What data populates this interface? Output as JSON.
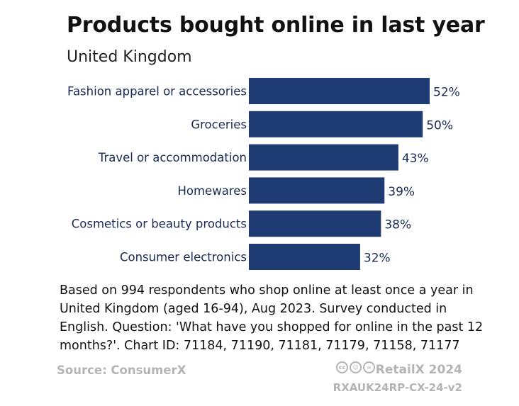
{
  "title": "Products bought online in last year",
  "subtitle": "United Kingdom",
  "chart_data": {
    "type": "bar",
    "orientation": "horizontal",
    "title": "Products bought online in last year",
    "subtitle": "United Kingdom",
    "categories": [
      "Fashion apparel or accessories",
      "Groceries",
      "Travel or accommodation",
      "Homewares",
      "Cosmetics or beauty products",
      "Consumer electronics"
    ],
    "values": [
      52,
      50,
      43,
      39,
      38,
      32
    ],
    "labels": [
      "52%",
      "50%",
      "43%",
      "39%",
      "38%",
      "32%"
    ],
    "unit": "%",
    "xlim": [
      0,
      52
    ],
    "grid": false,
    "bar_color": "#1f3b73"
  },
  "note": "Based on 994 respondents who shop online at least once a year in United Kingdom (aged 16-94), Aug 2023. Survey conducted in English. Question: 'What have you shopped for online in the past 12 months?'. Chart ID: 71184, 71190, 71181, 71179, 71158, 71177",
  "source": "Source: ConsumerX",
  "brand": "RetailX 2024",
  "report_code": "RXAUK24RP-CX-24-v2",
  "license_icons": [
    "cc-icon",
    "by-icon",
    "nd-icon"
  ],
  "license_glyphs": [
    "cc",
    "☺",
    "="
  ]
}
